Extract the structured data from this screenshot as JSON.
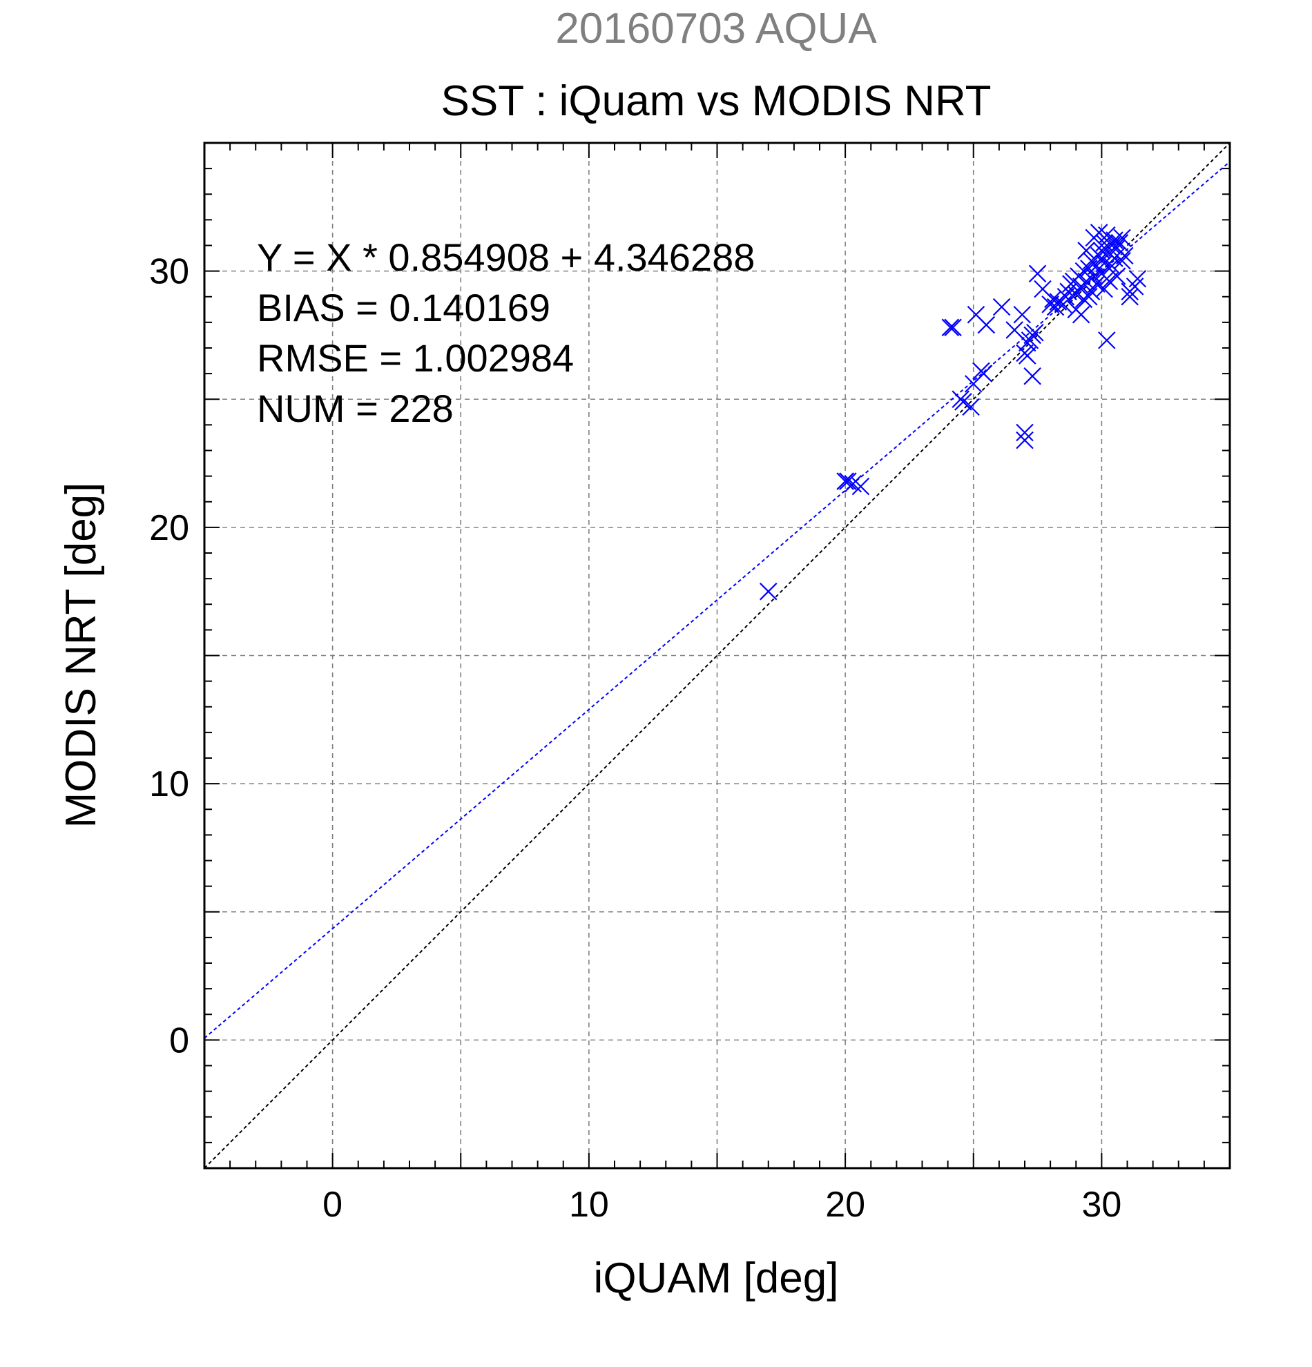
{
  "chart_data": {
    "type": "scatter",
    "title_top": "20160703 AQUA",
    "title": "SST : iQuam vs MODIS NRT",
    "xlabel": "iQUAM [deg]",
    "ylabel": "MODIS NRT [deg]",
    "xlim": [
      -5,
      35
    ],
    "ylim": [
      -5,
      35
    ],
    "xticks": [
      0,
      10,
      20,
      30
    ],
    "yticks": [
      0,
      10,
      20,
      30
    ],
    "minor_step": 1,
    "grid_step": 5,
    "grid": true,
    "colors": {
      "title_top": "#808080",
      "text": "#000000",
      "points": "#0000ff",
      "fit_line": "#0000ff",
      "identity_line": "#000000",
      "grid": "#808080"
    },
    "stats": [
      "Y = X * 0.854908 + 4.346288",
      "BIAS = 0.140169",
      "RMSE = 1.002984",
      "NUM = 228"
    ],
    "fit": {
      "slope": 0.854908,
      "intercept": 4.346288
    },
    "identity": {
      "slope": 1,
      "intercept": 0
    },
    "points": [
      [
        17.0,
        17.5
      ],
      [
        20.0,
        21.8
      ],
      [
        20.1,
        21.8
      ],
      [
        20.3,
        21.7
      ],
      [
        20.6,
        21.6
      ],
      [
        24.1,
        27.8
      ],
      [
        24.2,
        27.8
      ],
      [
        24.5,
        25.0
      ],
      [
        24.6,
        24.9
      ],
      [
        24.9,
        24.7
      ],
      [
        25.0,
        25.6
      ],
      [
        25.1,
        28.3
      ],
      [
        25.3,
        26.1
      ],
      [
        25.4,
        26.0
      ],
      [
        25.5,
        27.9
      ],
      [
        26.1,
        28.6
      ],
      [
        26.6,
        27.7
      ],
      [
        26.9,
        28.3
      ],
      [
        27.0,
        26.8
      ],
      [
        27.0,
        23.7
      ],
      [
        27.0,
        23.4
      ],
      [
        27.1,
        26.7
      ],
      [
        27.1,
        27.2
      ],
      [
        27.2,
        27.3
      ],
      [
        27.3,
        27.5
      ],
      [
        27.3,
        25.9
      ],
      [
        27.4,
        27.6
      ],
      [
        27.5,
        29.9
      ],
      [
        27.7,
        29.3
      ],
      [
        28.0,
        28.7
      ],
      [
        28.1,
        28.9
      ],
      [
        28.2,
        28.6
      ],
      [
        28.3,
        28.8
      ],
      [
        28.5,
        28.7
      ],
      [
        28.6,
        29.0
      ],
      [
        28.7,
        29.2
      ],
      [
        28.8,
        29.5
      ],
      [
        28.9,
        29.6
      ],
      [
        29.0,
        29.1
      ],
      [
        29.0,
        28.5
      ],
      [
        29.1,
        29.8
      ],
      [
        29.2,
        28.3
      ],
      [
        29.2,
        29.4
      ],
      [
        29.3,
        28.9
      ],
      [
        29.3,
        30.0
      ],
      [
        29.4,
        29.6
      ],
      [
        29.5,
        30.1
      ],
      [
        29.5,
        29.0
      ],
      [
        29.6,
        30.4
      ],
      [
        29.7,
        29.8
      ],
      [
        29.7,
        31.3
      ],
      [
        29.8,
        30.2
      ],
      [
        29.8,
        29.5
      ],
      [
        29.9,
        30.6
      ],
      [
        29.9,
        31.5
      ],
      [
        30.0,
        30.8
      ],
      [
        30.0,
        29.9
      ],
      [
        30.1,
        31.1
      ],
      [
        30.1,
        30.3
      ],
      [
        30.2,
        29.7
      ],
      [
        30.2,
        27.3
      ],
      [
        30.2,
        31.4
      ],
      [
        30.3,
        30.7
      ],
      [
        30.3,
        29.6
      ],
      [
        30.4,
        31.0
      ],
      [
        30.4,
        30.2
      ],
      [
        30.5,
        31.2
      ],
      [
        30.5,
        30.5
      ],
      [
        30.6,
        30.9
      ],
      [
        30.6,
        29.8
      ],
      [
        30.7,
        31.1
      ],
      [
        30.8,
        30.4
      ],
      [
        30.8,
        31.3
      ],
      [
        30.9,
        30.6
      ],
      [
        31.1,
        29.2
      ],
      [
        31.1,
        29.0
      ],
      [
        31.3,
        29.4
      ],
      [
        31.4,
        29.7
      ],
      [
        29.6,
        29.2
      ],
      [
        30.0,
        30.5
      ],
      [
        29.4,
        30.8
      ],
      [
        30.1,
        29.3
      ]
    ]
  }
}
